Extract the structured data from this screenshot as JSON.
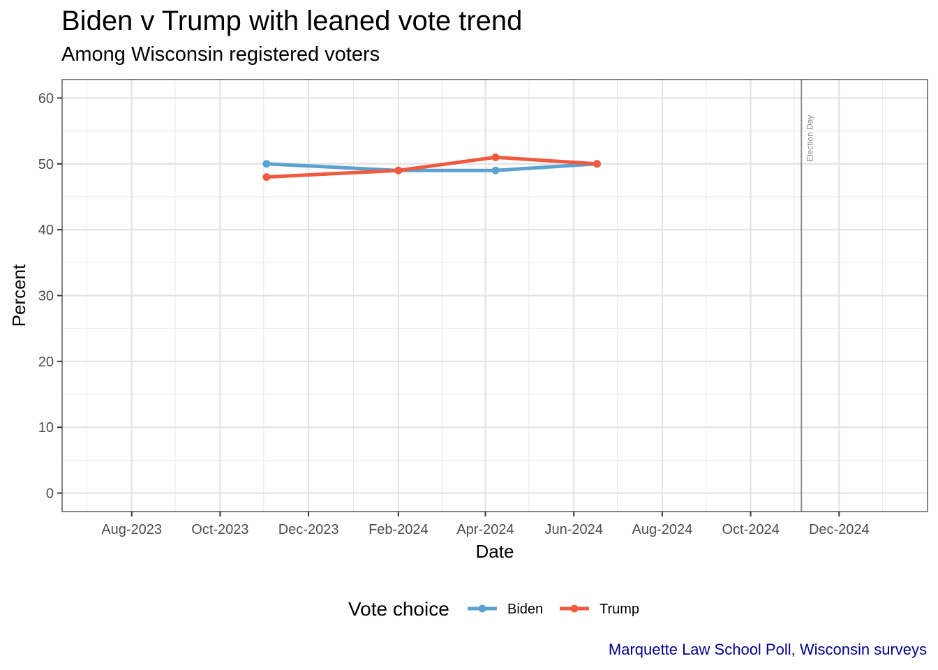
{
  "chart_data": {
    "type": "line",
    "title": "Biden v Trump with leaned vote trend",
    "subtitle": "Among Wisconsin registered voters",
    "xlabel": "Date",
    "ylabel": "Percent",
    "caption": "Marquette Law School Poll, Wisconsin surveys",
    "caption_color": "#00008B",
    "ylim": [
      -2.8,
      62.8
    ],
    "xlim": [
      "2023-06-14",
      "2025-01-31"
    ],
    "x_ticks": [
      {
        "date": "2023-08-01",
        "label": "Aug-2023"
      },
      {
        "date": "2023-10-01",
        "label": "Oct-2023"
      },
      {
        "date": "2023-12-01",
        "label": "Dec-2023"
      },
      {
        "date": "2024-02-01",
        "label": "Feb-2024"
      },
      {
        "date": "2024-04-01",
        "label": "Apr-2024"
      },
      {
        "date": "2024-06-01",
        "label": "Jun-2024"
      },
      {
        "date": "2024-08-01",
        "label": "Aug-2024"
      },
      {
        "date": "2024-10-01",
        "label": "Oct-2024"
      },
      {
        "date": "2024-12-01",
        "label": "Dec-2024"
      }
    ],
    "y_ticks": [
      0,
      10,
      20,
      30,
      40,
      50,
      60
    ],
    "grid": true,
    "legend_title": "Vote choice",
    "legend_position": "bottom",
    "series": [
      {
        "name": "Biden",
        "color": "#5BA2D1",
        "points": [
          {
            "x": "2023-11-02",
            "y": 50
          },
          {
            "x": "2024-02-01",
            "y": 49
          },
          {
            "x": "2024-04-08",
            "y": 49
          },
          {
            "x": "2024-06-17",
            "y": 50
          }
        ]
      },
      {
        "name": "Trump",
        "color": "#F05A40",
        "points": [
          {
            "x": "2023-11-02",
            "y": 48
          },
          {
            "x": "2024-02-01",
            "y": 49
          },
          {
            "x": "2024-04-08",
            "y": 51
          },
          {
            "x": "2024-06-17",
            "y": 50
          }
        ]
      }
    ],
    "annotations": [
      {
        "type": "vline",
        "x": "2024-11-05",
        "label": "Election Day",
        "color": "#8c8c8c"
      }
    ]
  }
}
